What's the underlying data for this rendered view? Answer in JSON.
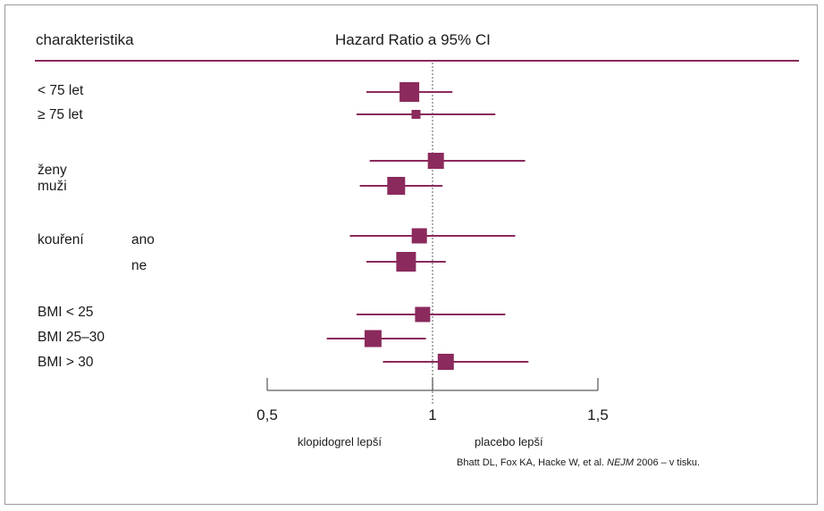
{
  "colors": {
    "accent": "#8b2a5c",
    "text": "#1a1a1a",
    "border": "#9a9a9a",
    "dashed_line": "#777777"
  },
  "header": {
    "column_label": "charakteristika",
    "title": "Hazard Ratio a 95% CI"
  },
  "chart_data": {
    "type": "forest",
    "title": "Hazard Ratio a 95% CI",
    "xlim": [
      0.5,
      1.5
    ],
    "xticks": [
      {
        "value": 0.5,
        "label": "0,5"
      },
      {
        "value": 1.0,
        "label": "1"
      },
      {
        "value": 1.5,
        "label": "1,5"
      }
    ],
    "reference_line": 1.0,
    "left_label": "klopidogrel lepší",
    "right_label": "placebo lepší",
    "rows": [
      {
        "group": "",
        "label": "< 75 let",
        "hr": 0.93,
        "ci_low": 0.8,
        "ci_high": 1.06
      },
      {
        "group": "",
        "label": "≥ 75 let",
        "hr": 0.95,
        "ci_low": 0.77,
        "ci_high": 1.19
      },
      {
        "group": "",
        "label": "ženy",
        "hr": 1.01,
        "ci_low": 0.81,
        "ci_high": 1.28
      },
      {
        "group": "",
        "label": "muži",
        "hr": 0.89,
        "ci_low": 0.78,
        "ci_high": 1.03
      },
      {
        "group": "kouření",
        "label": "ano",
        "hr": 0.96,
        "ci_low": 0.75,
        "ci_high": 1.25
      },
      {
        "group": "",
        "label": "ne",
        "hr": 0.92,
        "ci_low": 0.8,
        "ci_high": 1.04
      },
      {
        "group": "",
        "label": "BMI < 25",
        "hr": 0.97,
        "ci_low": 0.77,
        "ci_high": 1.22
      },
      {
        "group": "",
        "label": "BMI 25–30",
        "hr": 0.82,
        "ci_low": 0.68,
        "ci_high": 0.98
      },
      {
        "group": "",
        "label": "BMI > 30",
        "hr": 1.04,
        "ci_low": 0.85,
        "ci_high": 1.29
      }
    ]
  },
  "source": {
    "authors": "Bhatt DL, Fox KA, Hacke W, et al.",
    "journal": "NEJM",
    "rest": "2006 – v tisku."
  }
}
